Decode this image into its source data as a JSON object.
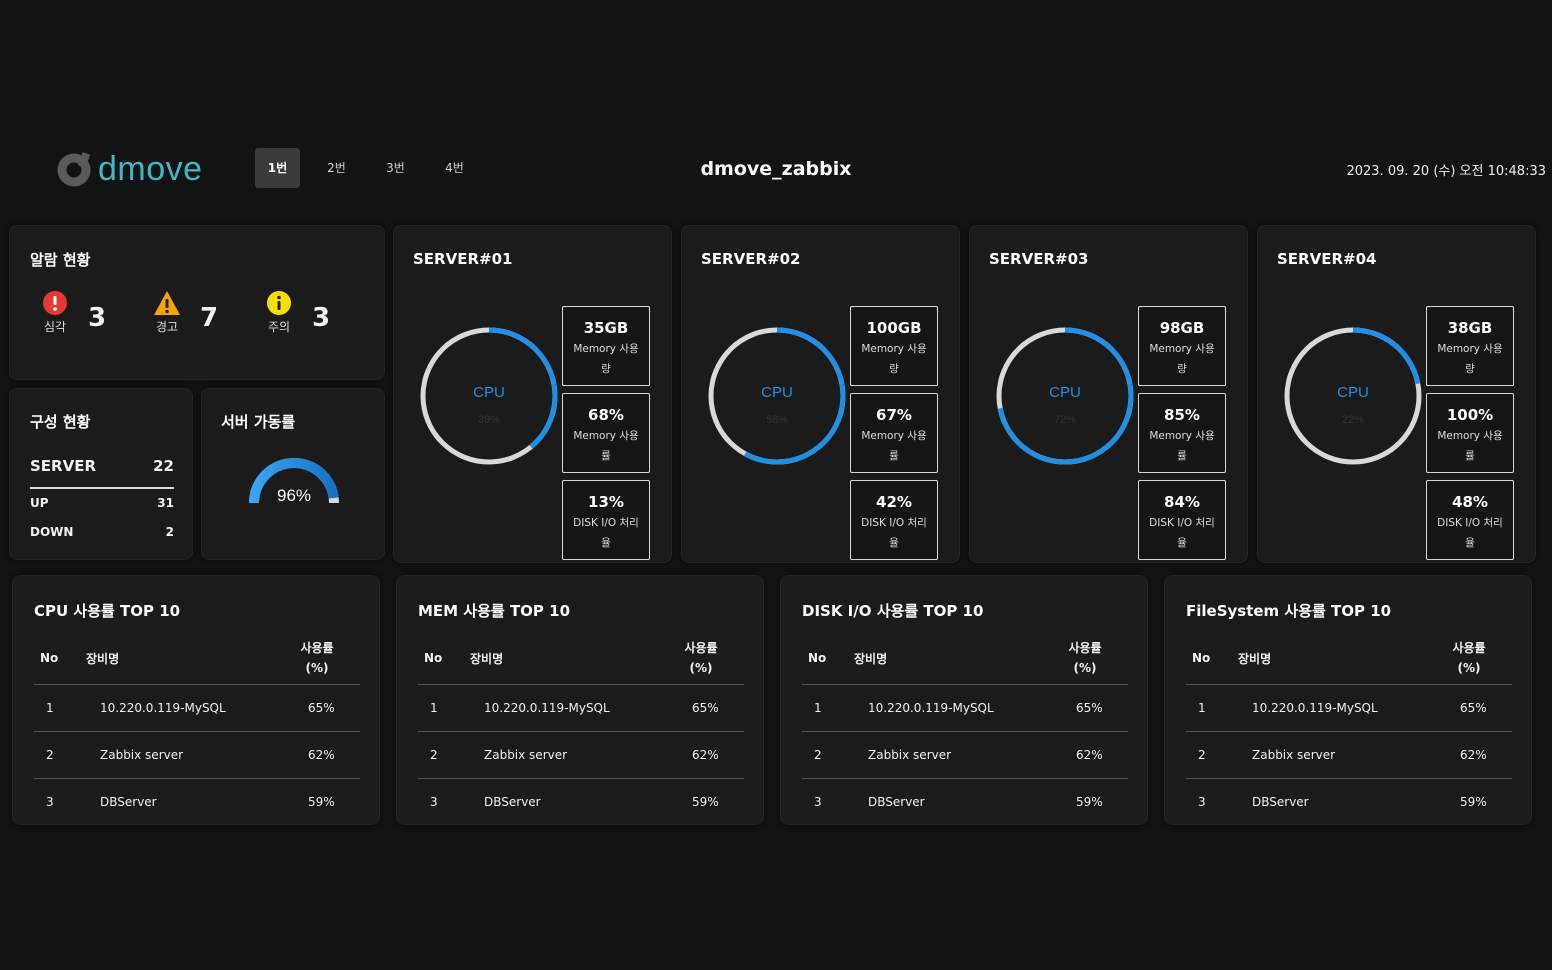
{
  "header": {
    "logo_text": "dmove",
    "tabs": [
      "1번",
      "2번",
      "3번",
      "4번"
    ],
    "active_tab": 0,
    "title": "dmove_zabbix",
    "datetime": "2023. 09. 20 (수) 오전 10:48:33"
  },
  "alarm": {
    "title": "알람 현황",
    "items": [
      {
        "label": "심각",
        "count": "3",
        "icon": "error-icon",
        "color": "#e53935"
      },
      {
        "label": "경고",
        "count": "7",
        "icon": "warning-icon",
        "color": "#f5a300"
      },
      {
        "label": "주의",
        "count": "3",
        "icon": "info-icon",
        "color": "#f5e000"
      }
    ]
  },
  "config": {
    "title": "구성 현황",
    "server_label": "SERVER",
    "server_count": "22",
    "up_label": "UP",
    "up_count": "31",
    "down_label": "DOWN",
    "down_count": "2"
  },
  "availability": {
    "title": "서버 가동률",
    "value_text": "96%",
    "value": 0.96,
    "color": "#1e90e6"
  },
  "servers": [
    {
      "name": "SERVER#01",
      "cpu_label": "CPU",
      "cpu_text": "39%",
      "cpu": 0.39,
      "metrics": [
        {
          "value": "35GB",
          "label": "Memory 사용량"
        },
        {
          "value": "68%",
          "label": "Memory 사용률"
        },
        {
          "value": "13%",
          "label": "DISK I/O 처리율"
        }
      ]
    },
    {
      "name": "SERVER#02",
      "cpu_label": "CPU",
      "cpu_text": "58%",
      "cpu": 0.58,
      "metrics": [
        {
          "value": "100GB",
          "label": "Memory 사용량"
        },
        {
          "value": "67%",
          "label": "Memory 사용률"
        },
        {
          "value": "42%",
          "label": "DISK I/O 처리율"
        }
      ]
    },
    {
      "name": "SERVER#03",
      "cpu_label": "CPU",
      "cpu_text": "72%",
      "cpu": 0.72,
      "metrics": [
        {
          "value": "98GB",
          "label": "Memory 사용량"
        },
        {
          "value": "85%",
          "label": "Memory 사용률"
        },
        {
          "value": "84%",
          "label": "DISK I/O 처리율"
        }
      ]
    },
    {
      "name": "SERVER#04",
      "cpu_label": "CPU",
      "cpu_text": "22%",
      "cpu": 0.22,
      "metrics": [
        {
          "value": "38GB",
          "label": "Memory 사용량"
        },
        {
          "value": "100%",
          "label": "Memory 사용률"
        },
        {
          "value": "48%",
          "label": "DISK I/O 처리율"
        }
      ]
    }
  ],
  "colors": {
    "accent": "#1e90e6",
    "ring_track": "#d9d9d9"
  },
  "tables": [
    {
      "title": "CPU 사용률 TOP 10",
      "headers": {
        "no": "No",
        "name": "장비명",
        "use": "사용률 (%)"
      },
      "rows": [
        {
          "no": "1",
          "name": "10.220.0.119-MySQL",
          "use": "65%"
        },
        {
          "no": "2",
          "name": "Zabbix server",
          "use": "62%"
        },
        {
          "no": "3",
          "name": "DBServer",
          "use": "59%"
        }
      ]
    },
    {
      "title": "MEM 사용률 TOP 10",
      "headers": {
        "no": "No",
        "name": "장비명",
        "use": "사용률 (%)"
      },
      "rows": [
        {
          "no": "1",
          "name": "10.220.0.119-MySQL",
          "use": "65%"
        },
        {
          "no": "2",
          "name": "Zabbix server",
          "use": "62%"
        },
        {
          "no": "3",
          "name": "DBServer",
          "use": "59%"
        }
      ]
    },
    {
      "title": "DISK I/O 사용률 TOP 10",
      "headers": {
        "no": "No",
        "name": "장비명",
        "use": "사용률 (%)"
      },
      "rows": [
        {
          "no": "1",
          "name": "10.220.0.119-MySQL",
          "use": "65%"
        },
        {
          "no": "2",
          "name": "Zabbix server",
          "use": "62%"
        },
        {
          "no": "3",
          "name": "DBServer",
          "use": "59%"
        }
      ]
    },
    {
      "title": "FileSystem 사용률 TOP 10",
      "headers": {
        "no": "No",
        "name": "장비명",
        "use": "사용률 (%)"
      },
      "rows": [
        {
          "no": "1",
          "name": "10.220.0.119-MySQL",
          "use": "65%"
        },
        {
          "no": "2",
          "name": "Zabbix server",
          "use": "62%"
        },
        {
          "no": "3",
          "name": "DBServer",
          "use": "59%"
        }
      ]
    }
  ]
}
